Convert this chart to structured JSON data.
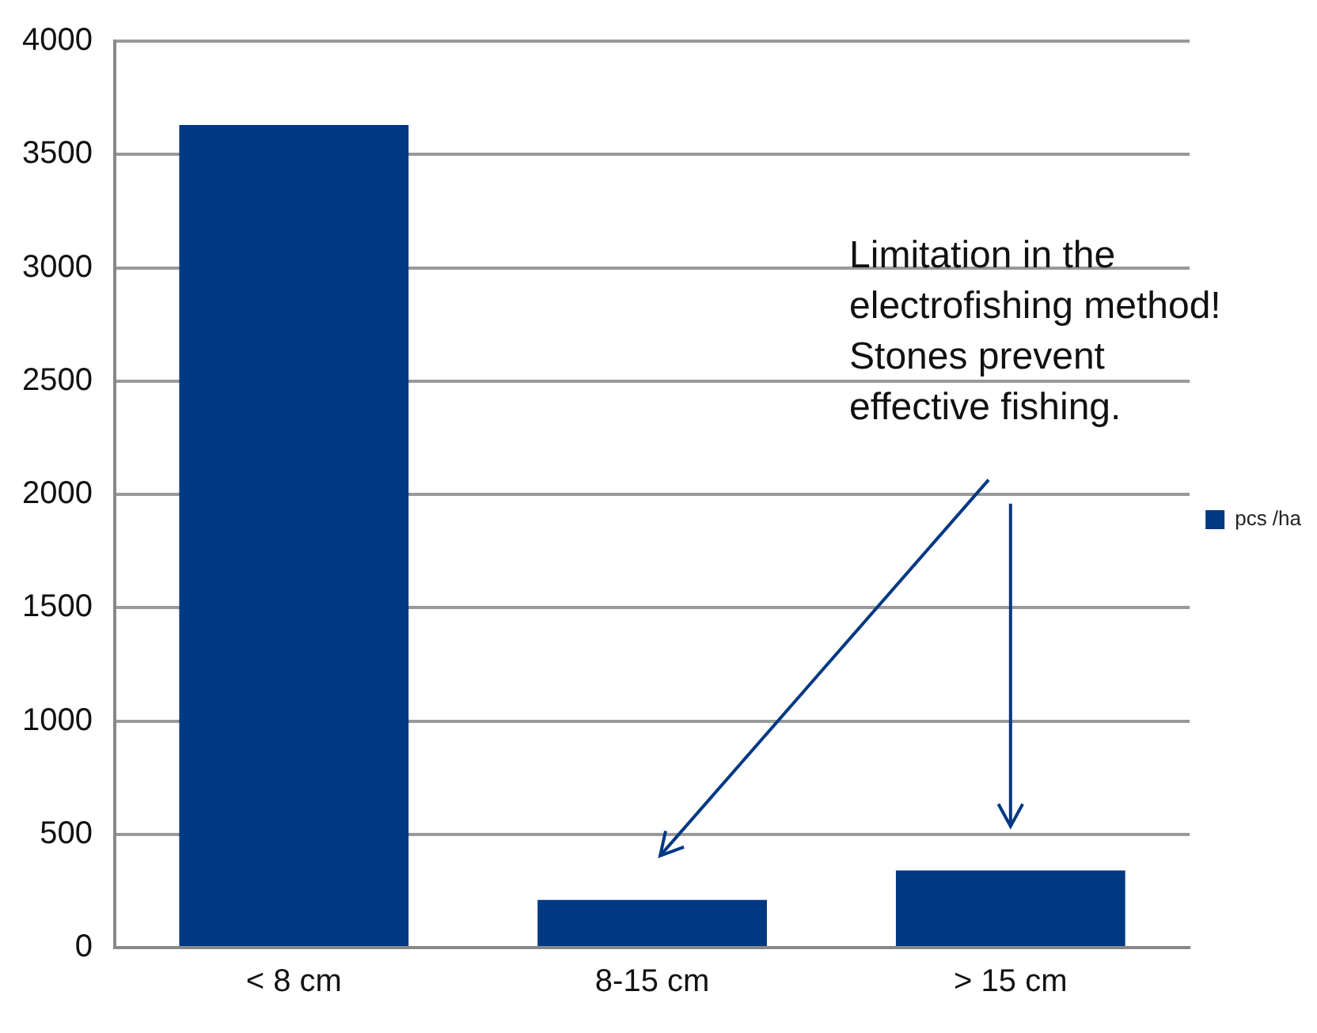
{
  "chart_data": {
    "type": "bar",
    "categories": [
      "< 8 cm",
      "8-15 cm",
      "> 15 cm"
    ],
    "series": [
      {
        "name": "pcs /ha",
        "color": "#003882",
        "values": [
          3630,
          210,
          340
        ]
      }
    ],
    "ylim": [
      0,
      4000
    ],
    "yticks": [
      0,
      500,
      1000,
      1500,
      2000,
      2500,
      3000,
      3500,
      4000
    ],
    "grid": "y",
    "legend": "right",
    "annotations": [
      "Limitation in the\nelectrofishing method!\nStones prevent\neffective fishing."
    ]
  }
}
